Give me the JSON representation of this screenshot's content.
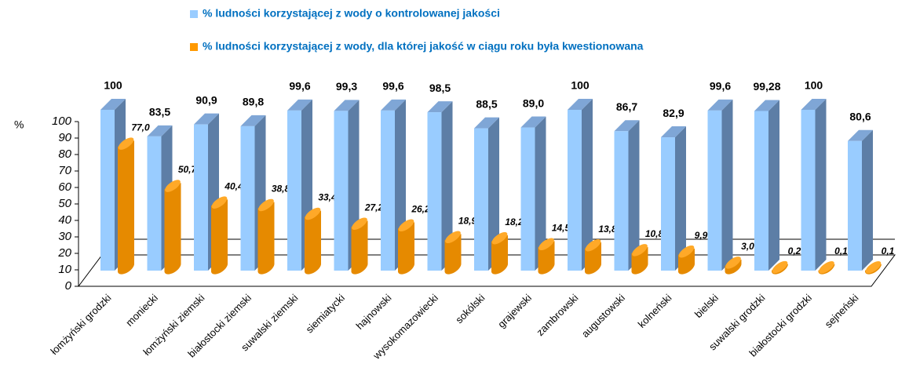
{
  "chart_data": {
    "type": "bar3d",
    "y_label": "%",
    "categories": [
      "łomżyński grodzki",
      "moniecki",
      "łomżyński ziemski",
      "białostocki ziemski",
      "suwalski ziemski",
      "siemiatycki",
      "hajnowski",
      "wysokomazowiecki",
      "sokólski",
      "grajewski",
      "zambrowski",
      "augustowski",
      "kolneński",
      "bielski",
      "suwalski grodzki",
      "białostocki grodzki",
      "sejneński"
    ],
    "series": [
      {
        "name": "% ludności korzystającej z wody o kontrolowanej jakości",
        "color": "#99ccff",
        "values": [
          100,
          83.5,
          90.9,
          89.8,
          99.6,
          99.3,
          99.6,
          98.5,
          88.5,
          89.0,
          100,
          86.7,
          82.9,
          99.6,
          99.28,
          100,
          80.6
        ],
        "value_labels": [
          "100",
          "83,5",
          "90,9",
          "89,8",
          "99,6",
          "99,3",
          "99,6",
          "98,5",
          "88,5",
          "89,0",
          "100",
          "86,7",
          "82,9",
          "99,6",
          "99,28",
          "100",
          "80,6"
        ]
      },
      {
        "name": "% ludności korzystającej z wody, dla której jakość w ciągu roku była kwestionowana",
        "color": "#ff9900",
        "values": [
          77.0,
          50.7,
          40.4,
          38.8,
          33.4,
          27.2,
          26.2,
          18.9,
          18.2,
          14.5,
          13.8,
          10.8,
          9.9,
          3.0,
          0.2,
          0.1,
          0.1
        ],
        "value_labels": [
          "77,0",
          "50,7",
          "40,4",
          "38,8",
          "33,4",
          "27,2",
          "26,2",
          "18,9",
          "18,2",
          "14,5",
          "13,8",
          "10,8",
          "9,9",
          "3,0",
          "0,2",
          "0,1",
          "0,1"
        ]
      }
    ],
    "ylim": [
      0,
      100
    ],
    "yticks": [
      0,
      10,
      20,
      30,
      40,
      50,
      60,
      70,
      80,
      90,
      100
    ]
  }
}
